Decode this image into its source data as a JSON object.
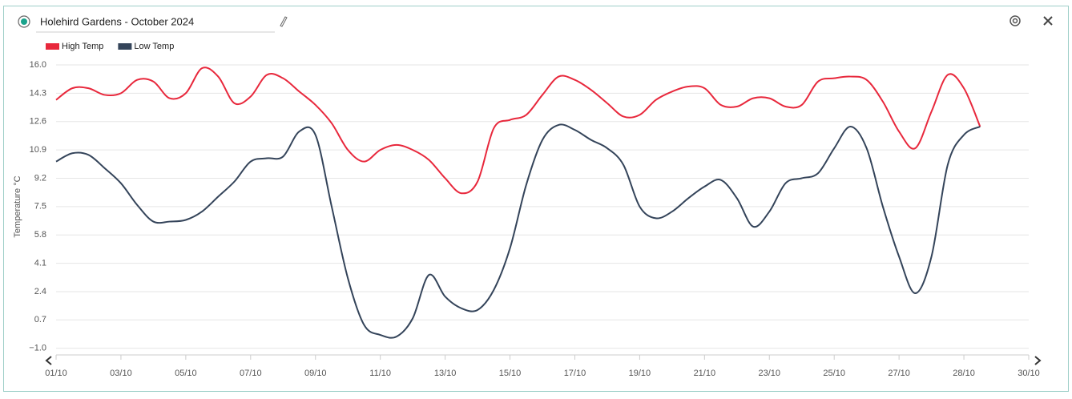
{
  "chart_data": {
    "type": "line",
    "title": "Holehird Gardens - October 2024",
    "y_label": "Temperature °C",
    "categories": [
      "01/10",
      null,
      null,
      null,
      "03/10",
      null,
      null,
      null,
      "05/10",
      null,
      null,
      null,
      "07/10",
      null,
      null,
      null,
      "09/10",
      null,
      null,
      null,
      "11/10",
      null,
      null,
      null,
      "13/10",
      null,
      null,
      null,
      "15/10",
      null,
      null,
      null,
      "17/10",
      null,
      null,
      null,
      "19/10",
      null,
      null,
      null,
      "21/10",
      null,
      null,
      null,
      "23/10",
      null,
      null,
      null,
      "25/10",
      null,
      null,
      null,
      "27/10",
      null,
      null,
      null,
      "28/10",
      null,
      null,
      null,
      "30/10"
    ],
    "series": [
      {
        "name": "High Temp",
        "color": "#e8283c",
        "values": [
          13.9,
          14.6,
          14.6,
          14.2,
          14.3,
          15.1,
          15.0,
          14.0,
          14.3,
          15.8,
          15.3,
          13.7,
          14.1,
          15.4,
          15.2,
          14.4,
          13.6,
          12.5,
          10.9,
          10.2,
          10.9,
          11.2,
          10.9,
          10.3,
          9.2,
          8.3,
          9.0,
          12.2,
          12.7,
          13.0,
          14.2,
          15.3,
          15.1,
          14.5,
          13.7,
          12.9,
          13.0,
          13.9,
          14.4,
          14.7,
          14.6,
          13.6,
          13.5,
          14.0,
          14.0,
          13.5,
          13.6,
          15.0,
          15.2,
          15.3,
          15.1,
          13.8,
          12.0,
          11.0,
          13.2,
          15.4,
          14.6,
          12.3,
          null,
          null,
          null
        ]
      },
      {
        "name": "Low Temp",
        "color": "#34445a",
        "values": [
          10.2,
          10.7,
          10.6,
          9.8,
          8.9,
          7.6,
          6.6,
          6.6,
          6.7,
          7.2,
          8.1,
          9.0,
          10.2,
          10.4,
          10.5,
          12.0,
          11.8,
          7.5,
          3.2,
          0.4,
          -0.2,
          -0.3,
          0.8,
          3.4,
          2.1,
          1.4,
          1.3,
          2.5,
          5.0,
          8.8,
          11.5,
          12.4,
          12.1,
          11.5,
          11.0,
          10.0,
          7.5,
          6.8,
          7.2,
          8.0,
          8.7,
          9.1,
          8.0,
          6.3,
          7.2,
          8.9,
          9.2,
          9.5,
          11.0,
          12.3,
          11.0,
          7.5,
          4.5,
          2.3,
          4.5,
          10.0,
          11.8,
          12.3,
          null,
          null,
          null
        ]
      }
    ],
    "ylim": [
      -1.4,
      16.0
    ],
    "yticks": [
      {
        "value": -1,
        "label": "−1.0"
      },
      0.7,
      2.4,
      4.1,
      5.8,
      7.5,
      9.2,
      10.9,
      12.6,
      14.3,
      {
        "value": 16,
        "label": "16.0"
      }
    ],
    "grid": true
  }
}
